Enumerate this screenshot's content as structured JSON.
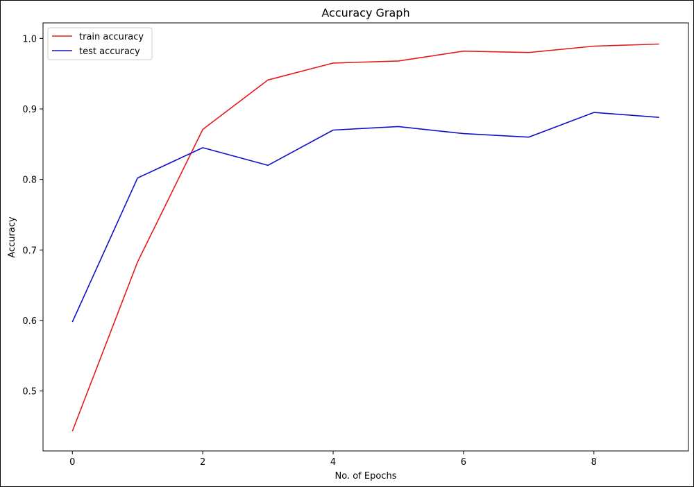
{
  "chart_data": {
    "type": "line",
    "title": "Accuracy Graph",
    "xlabel": "No. of Epochs",
    "ylabel": "Accuracy",
    "x": [
      0,
      1,
      2,
      3,
      4,
      5,
      6,
      7,
      8,
      9
    ],
    "xlim": [
      -0.45,
      9.45
    ],
    "ylim": [
      0.415,
      1.022
    ],
    "xticks": [
      0,
      2,
      4,
      6,
      8
    ],
    "xtick_labels": [
      "0",
      "2",
      "4",
      "6",
      "8"
    ],
    "yticks": [
      0.5,
      0.6,
      0.7,
      0.8,
      0.9,
      1.0
    ],
    "ytick_labels": [
      "0.5",
      "0.6",
      "0.7",
      "0.8",
      "0.9",
      "1.0"
    ],
    "grid": false,
    "legend_position": "top-left",
    "series": [
      {
        "name": "train accuracy",
        "color": "#e31a1c",
        "values": [
          0.443,
          0.683,
          0.871,
          0.941,
          0.965,
          0.968,
          0.982,
          0.98,
          0.989,
          0.992
        ]
      },
      {
        "name": "test accuracy",
        "color": "#1010c8",
        "values": [
          0.598,
          0.802,
          0.845,
          0.82,
          0.87,
          0.875,
          0.865,
          0.86,
          0.895,
          0.888
        ]
      }
    ]
  }
}
